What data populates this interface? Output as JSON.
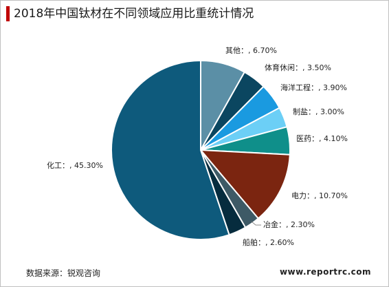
{
  "chart_data": {
    "type": "pie",
    "title": "2018年中国钛材在不同领域应用比重统计情况",
    "unit": "%",
    "start_angle_deg": 0,
    "direction": "clockwise",
    "slices": [
      {
        "name": "其他：",
        "value": 6.7,
        "label": "其他：, 6.70%",
        "color": "#5b8fa6"
      },
      {
        "name": "体育休闲：",
        "value": 3.5,
        "label": "体育休闲：, 3.50%",
        "color": "#0b4660"
      },
      {
        "name": "海洋工程：",
        "value": 3.9,
        "label": "海洋工程：, 3.90%",
        "color": "#1a9ae0"
      },
      {
        "name": "制盐：",
        "value": 3.0,
        "label": "制盐：, 3.00%",
        "color": "#6ccff6"
      },
      {
        "name": "医药：",
        "value": 4.1,
        "label": "医药：, 4.10%",
        "color": "#0f8f8a"
      },
      {
        "name": "电力：",
        "value": 10.7,
        "label": "电力：, 10.70%",
        "color": "#7b2510"
      },
      {
        "name": "冶金：",
        "value": 2.3,
        "label": "冶金：, 2.30%",
        "color": "#3e5a66"
      },
      {
        "name": "船舶：",
        "value": 2.6,
        "label": "船舶：, 2.60%",
        "color": "#062c3e"
      },
      {
        "name": "化工：",
        "value": 45.3,
        "label": "化工：, 45.30%",
        "color": "#0e5a7c"
      }
    ]
  },
  "accent_color": "#c00000",
  "footer": {
    "source": "数据来源：锐观咨询",
    "website": "www.reportrc.com"
  }
}
